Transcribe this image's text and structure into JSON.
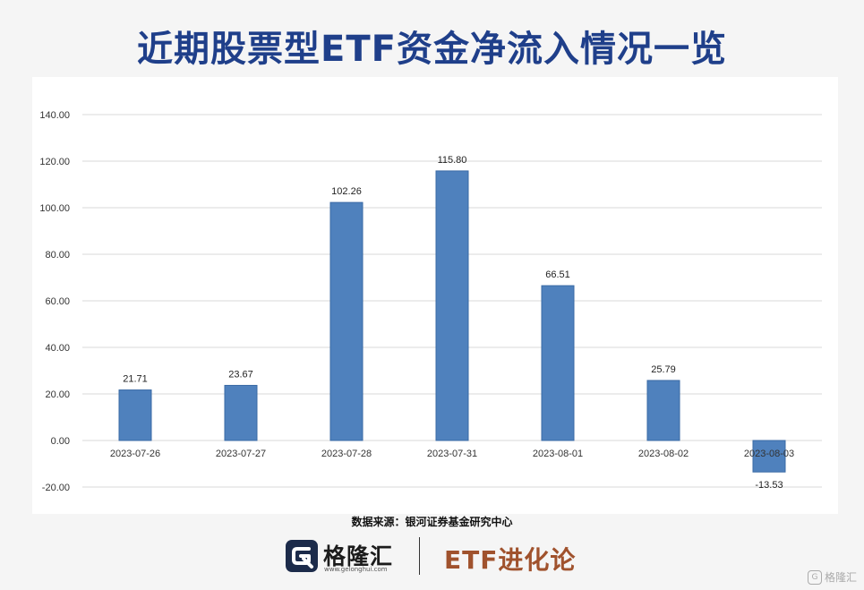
{
  "title": "近期股票型ETF资金净流入情况一览",
  "source": "数据来源：银河证券基金研究中心",
  "footer": {
    "brand": "格隆汇",
    "brand_domain": "www.gelonghui.com",
    "column": "ETF进化论"
  },
  "watermark": "格隆汇",
  "colors": {
    "bar": "#4f81bd",
    "title": "#1f3f8a",
    "column": "#a0522d"
  },
  "chart_data": {
    "type": "bar",
    "categories": [
      "2023-07-26",
      "2023-07-27",
      "2023-07-28",
      "2023-07-31",
      "2023-08-01",
      "2023-08-02",
      "2023-08-03"
    ],
    "values": [
      21.71,
      23.67,
      102.26,
      115.8,
      66.51,
      25.79,
      -13.53
    ],
    "data_labels": [
      "21.71",
      "23.67",
      "102.26",
      "115.80",
      "66.51",
      "25.79",
      "-13.53"
    ],
    "yticks": [
      "140.00",
      "120.00",
      "100.00",
      "80.00",
      "60.00",
      "40.00",
      "20.00",
      "0.00",
      "-20.00"
    ],
    "ylim": [
      -20,
      140
    ],
    "grid": true,
    "legend": "none"
  }
}
